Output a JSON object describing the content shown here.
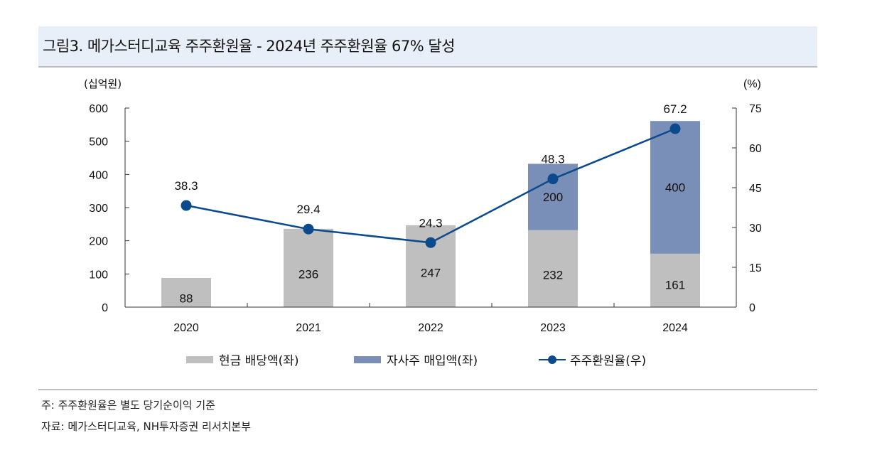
{
  "figure": {
    "title": "그림3. 메가스터디교육 주주환원율  - 2024년 주주환원율 67% 달성",
    "note": "주: 주주환원율은 별도 당기순이익 기준",
    "source": "자료: 메가스터디교육, NH투자증권 리서치본부"
  },
  "chart_data": {
    "type": "bar",
    "stacked": true,
    "title": "메가스터디교육 주주환원율",
    "categories": [
      "2020",
      "2021",
      "2022",
      "2023",
      "2024"
    ],
    "series": [
      {
        "name": "현금 배당액(좌)",
        "type": "bar",
        "axis": "left",
        "color": "#bfbfbf",
        "values": [
          88,
          236,
          247,
          232,
          161
        ]
      },
      {
        "name": "자사주 매입액(좌)",
        "type": "bar",
        "axis": "left",
        "color": "#7a8fb8",
        "values": [
          0,
          0,
          0,
          200,
          400
        ]
      },
      {
        "name": "주주환원율(우)",
        "type": "line",
        "axis": "right",
        "color": "#0b4a8c",
        "values": [
          38.3,
          29.4,
          24.3,
          48.3,
          67.2
        ]
      }
    ],
    "bar_labels": {
      "현금 배당액(좌)": [
        "88",
        "236",
        "247",
        "232",
        "161"
      ],
      "자사주 매입액(좌)": [
        "",
        "",
        "",
        "200",
        "400"
      ]
    },
    "line_labels": [
      "38.3",
      "29.4",
      "24.3",
      "48.3",
      "67.2"
    ],
    "ylabel_left": "(십억원)",
    "ylabel_right": "(%)",
    "ylim_left": [
      0,
      600
    ],
    "yticks_left": [
      "0",
      "100",
      "200",
      "300",
      "400",
      "500",
      "600"
    ],
    "ylim_right": [
      0,
      75
    ],
    "yticks_right": [
      "0",
      "15",
      "30",
      "45",
      "60",
      "75"
    ],
    "grid": false,
    "legend_position": "bottom"
  },
  "legend": {
    "items": [
      "현금 배당액(좌)",
      "자사주 매입액(좌)",
      "주주환원율(우)"
    ]
  }
}
